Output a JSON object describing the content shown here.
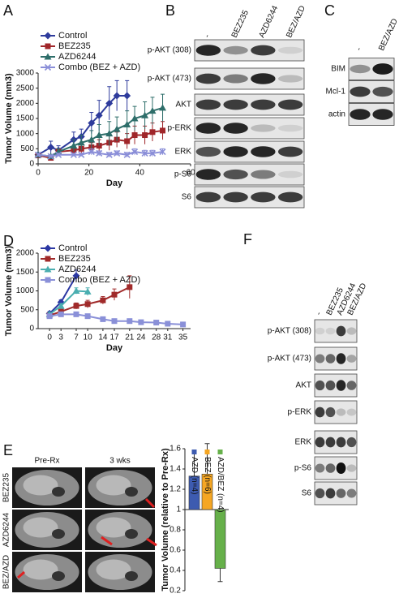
{
  "panel_labels": [
    "A",
    "B",
    "C",
    "D",
    "E",
    "F"
  ],
  "chart_data": [
    {
      "type": "line",
      "xlabel": "Day",
      "ylabel": "Tumor Volume (mm3)",
      "xlim": [
        0,
        60
      ],
      "xticks": [
        0,
        20,
        40,
        60
      ],
      "ylim": [
        0,
        3000
      ],
      "yticks": [
        0,
        500,
        1000,
        1500,
        2000,
        2500,
        3000
      ],
      "series": [
        {
          "name": "Control",
          "color": "#2e3b9c",
          "marker": "diamond",
          "x": [
            0,
            5,
            8,
            14,
            17,
            21,
            24,
            28,
            31,
            35
          ],
          "values": [
            300,
            550,
            450,
            800,
            900,
            1350,
            1600,
            2000,
            2250,
            2250
          ],
          "errors": [
            50,
            200,
            150,
            250,
            250,
            350,
            500,
            550,
            500,
            500
          ]
        },
        {
          "name": "BEZ235",
          "color": "#a0262a",
          "marker": "square",
          "x": [
            0,
            5,
            8,
            14,
            17,
            21,
            24,
            28,
            31,
            35,
            38,
            42,
            45,
            49
          ],
          "values": [
            280,
            200,
            400,
            450,
            500,
            550,
            600,
            700,
            800,
            750,
            950,
            950,
            1050,
            1100
          ],
          "errors": [
            50,
            50,
            100,
            150,
            150,
            150,
            200,
            250,
            250,
            250,
            300,
            300,
            300,
            300
          ]
        },
        {
          "name": "AZD6244",
          "color": "#2e6e6a",
          "marker": "triangle",
          "x": [
            0,
            5,
            8,
            14,
            17,
            21,
            24,
            28,
            31,
            35,
            38,
            42,
            45,
            49
          ],
          "values": [
            300,
            250,
            400,
            600,
            700,
            800,
            950,
            1000,
            1150,
            1300,
            1500,
            1600,
            1750,
            1850
          ],
          "errors": [
            50,
            50,
            100,
            200,
            250,
            300,
            350,
            400,
            400,
            450,
            400,
            450,
            450,
            450
          ]
        },
        {
          "name": "Combo (BEZ + AZD)",
          "color": "#8a8ed8",
          "marker": "x",
          "x": [
            0,
            5,
            8,
            14,
            17,
            21,
            24,
            28,
            31,
            35,
            38,
            42,
            45,
            49
          ],
          "values": [
            300,
            250,
            300,
            300,
            300,
            400,
            350,
            300,
            350,
            300,
            400,
            350,
            350,
            400
          ],
          "errors": [
            50,
            50,
            50,
            50,
            50,
            100,
            80,
            80,
            80,
            80,
            100,
            100,
            100,
            100
          ]
        }
      ]
    },
    {
      "type": "line",
      "xlabel": "Day",
      "ylabel": "Tumor Volume (mm3)",
      "xlim": [
        -3,
        37
      ],
      "xticks": [
        0,
        3,
        7,
        10,
        14,
        17,
        21,
        24,
        28,
        31,
        35
      ],
      "ylim": [
        0,
        2000
      ],
      "yticks": [
        0,
        500,
        1000,
        1500,
        2000
      ],
      "series": [
        {
          "name": "Control",
          "color": "#2b37a3",
          "marker": "diamond",
          "x": [
            0,
            3,
            7
          ],
          "values": [
            400,
            700,
            1400
          ],
          "errors": [
            50,
            60,
            150
          ]
        },
        {
          "name": "BEZ235",
          "color": "#a02a2a",
          "marker": "square",
          "x": [
            0,
            3,
            7,
            10,
            14,
            17,
            21
          ],
          "values": [
            350,
            450,
            600,
            650,
            750,
            900,
            1100
          ],
          "errors": [
            40,
            50,
            80,
            100,
            100,
            150,
            300
          ]
        },
        {
          "name": "AZD6244",
          "color": "#4aaeb0",
          "marker": "triangle",
          "x": [
            0,
            3,
            7,
            10
          ],
          "values": [
            380,
            600,
            1000,
            980
          ],
          "errors": [
            40,
            60,
            80,
            100
          ]
        },
        {
          "name": "Combo (BEZ + AZD)",
          "color": "#8a90d8",
          "marker": "square",
          "x": [
            0,
            3,
            7,
            10,
            14,
            17,
            21,
            24,
            28,
            31,
            35
          ],
          "values": [
            330,
            380,
            380,
            330,
            250,
            200,
            200,
            170,
            160,
            130,
            110
          ],
          "errors": [
            20,
            20,
            20,
            20,
            20,
            20,
            20,
            20,
            20,
            20,
            20
          ]
        }
      ]
    },
    {
      "type": "bar",
      "ylabel": "Tumor Volume (relative to Pre-Rx)",
      "ylim": [
        0.2,
        1.6
      ],
      "yticks": [
        0.2,
        0.4,
        0.6,
        0.8,
        1,
        1.2,
        1.4,
        1.6
      ],
      "baseline": 1,
      "categories": [
        "AZD (n=4)",
        "BEZ (n=6)",
        "AZD/BEZ (n=4)"
      ],
      "values": [
        1.33,
        1.35,
        0.42
      ],
      "errors": [
        0.24,
        0.3,
        0.13
      ],
      "colors": [
        "#3d5bb0",
        "#f5a623",
        "#66b04a"
      ]
    }
  ],
  "blots": [
    {
      "columns": [
        "-",
        "BEZ235",
        "AZD6244",
        "BEZ/AZD"
      ],
      "rows": [
        "p-AKT (308)",
        "p-AKT (473)",
        "AKT",
        "p-ERK",
        "ERK",
        "p-S6",
        "S6"
      ]
    },
    {
      "columns": [
        "-",
        "BEZ/AZD"
      ],
      "rows": [
        "BIM",
        "Mcl-1",
        "actin"
      ]
    },
    {
      "columns": [
        "-",
        "BEZ235",
        "AZD6244",
        "BEZ/AZD"
      ],
      "rows": [
        "p-AKT (308)",
        "p-AKT (473)",
        "AKT",
        "p-ERK",
        "ERK",
        "p-S6",
        "S6"
      ]
    }
  ],
  "mri": {
    "columns": [
      "Pre-Rx",
      "3 wks"
    ],
    "rows": [
      "BEZ235",
      "AZD6244",
      "BEZ/AZD"
    ]
  }
}
